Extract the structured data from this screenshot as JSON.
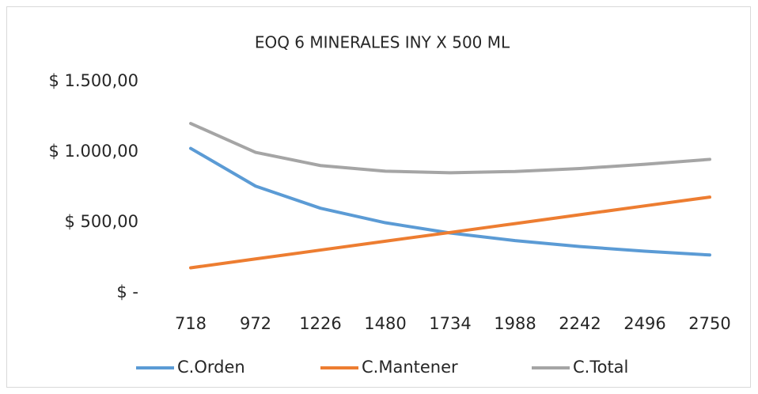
{
  "chart_data": {
    "type": "line",
    "title": "EOQ 6 MINERALES INY X 500 ML",
    "categories": [
      "718",
      "972",
      "1226",
      "1480",
      "1734",
      "1988",
      "2242",
      "2496",
      "2750"
    ],
    "series": [
      {
        "name": "C.Orden",
        "color": "#5b9bd5",
        "values": [
          1025,
          757,
          600,
          497,
          424,
          370,
          328,
          295,
          268
        ]
      },
      {
        "name": "C.Mantener",
        "color": "#ed7d31",
        "values": [
          177,
          240,
          303,
          366,
          428,
          491,
          554,
          617,
          679
        ]
      },
      {
        "name": "C.Total",
        "color": "#a5a5a5",
        "values": [
          1202,
          997,
          903,
          863,
          852,
          861,
          882,
          912,
          947
        ]
      }
    ],
    "ylim": [
      0,
      1500
    ],
    "yticks": [
      {
        "value": 0,
        "label": "$ -"
      },
      {
        "value": 500,
        "label": "$ 500,00"
      },
      {
        "value": 1000,
        "label": "$ 1.000,00"
      },
      {
        "value": 1500,
        "label": "$ 1.500,00"
      }
    ],
    "grid": false,
    "legend": "bottom"
  }
}
